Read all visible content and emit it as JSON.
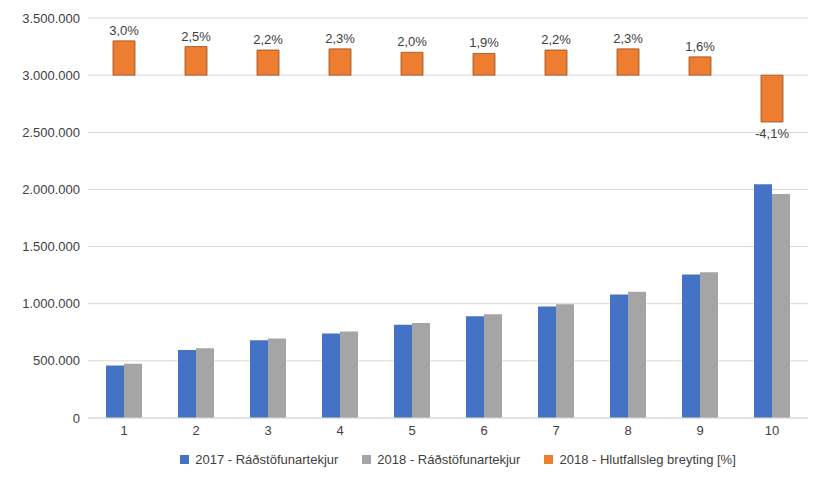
{
  "chart_data": {
    "type": "bar",
    "categories": [
      "1",
      "2",
      "3",
      "4",
      "5",
      "6",
      "7",
      "8",
      "9",
      "10"
    ],
    "series": [
      {
        "name": "2017 - Ráðstöfunartekjur",
        "color": "#4472c4",
        "type": "bar",
        "values": [
          460000,
          595000,
          680000,
          740000,
          815000,
          890000,
          975000,
          1080000,
          1255000,
          2045000
        ]
      },
      {
        "name": "2018 - Ráðstöfunartekjur",
        "color": "#a5a5a5",
        "type": "bar",
        "values": [
          474000,
          610000,
          695000,
          757000,
          831000,
          907000,
          996000,
          1105000,
          1275000,
          1961000
        ]
      },
      {
        "name": "2018 - Hlutfallsleg breyting [%]",
        "color": "#ed7d31",
        "type": "bar",
        "axis": "y2",
        "data_labels": true,
        "values": [
          3.0,
          2.5,
          2.2,
          2.3,
          2.0,
          1.9,
          2.2,
          2.3,
          1.6,
          -4.1
        ],
        "value_labels": [
          "3,0%",
          "2,5%",
          "2,2%",
          "2,3%",
          "2,0%",
          "1,9%",
          "2,2%",
          "2,3%",
          "1,6%",
          "-4,1%"
        ]
      }
    ],
    "ylim": [
      0,
      3500000
    ],
    "yticks": [
      0,
      {
        "value": 500000,
        "label": "500.000"
      },
      {
        "value": 1000000,
        "label": "1.000.000"
      },
      {
        "value": 1500000,
        "label": "1.500.000"
      },
      {
        "value": 2000000,
        "label": "2.000.000"
      },
      {
        "value": 2500000,
        "label": "2.500.000"
      },
      {
        "value": 3000000,
        "label": "3.000.000"
      },
      {
        "value": 3500000,
        "label": "3.500.000"
      }
    ],
    "y2lim": [
      -30,
      5
    ],
    "grid": true,
    "legend": "bottom"
  }
}
